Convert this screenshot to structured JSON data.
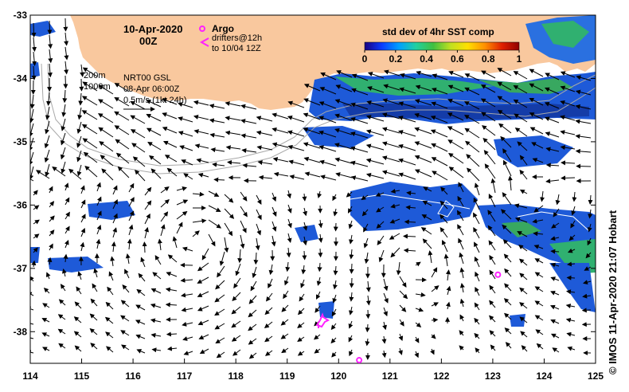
{
  "header": {
    "date": "10-Apr-2020",
    "time": "00Z"
  },
  "legend": {
    "argo_label": "Argo",
    "drifters_label": "drifters@12h",
    "drifters_label2": "to 10/04 12Z",
    "colorbar_title": "std dev of 4hr SST comp",
    "colorbar_ticks": [
      "0",
      "0.2",
      "0.4",
      "0.6",
      "0.8",
      "1"
    ],
    "colorbar_colors": [
      "#1a0080",
      "#0a3cff",
      "#00a0ff",
      "#20d0a0",
      "#40c040",
      "#c0e020",
      "#ffe000",
      "#ff9000",
      "#e02000",
      "#900000"
    ]
  },
  "info": {
    "contour_200": "200m",
    "contour_1000": "1000m",
    "gsl_label": "NRT00 GSL",
    "gsl_time": "08-Apr 06:00Z",
    "scale_label": "0.5m/s (1kt 24h)"
  },
  "credit": "©  IMOS 11-Apr-2020 21:07 Hobart",
  "axes": {
    "lon_ticks": [
      "114",
      "115",
      "116",
      "117",
      "118",
      "119",
      "120",
      "121",
      "122",
      "123",
      "124",
      "125"
    ],
    "lat_ticks": [
      "-33",
      "-34",
      "-35",
      "-36",
      "-37",
      "-38"
    ],
    "lon_range": [
      114,
      125
    ],
    "lat_range": [
      -38.5,
      -33
    ]
  },
  "colors": {
    "land": "#f9c89e",
    "ocean": "#ffffff",
    "argo": "#ff22ff",
    "contour": "#a8a8a8"
  },
  "argo_floats": [
    {
      "lon": 120.4,
      "lat": -38.45
    },
    {
      "lon": 123.1,
      "lat": -37.1
    }
  ]
}
